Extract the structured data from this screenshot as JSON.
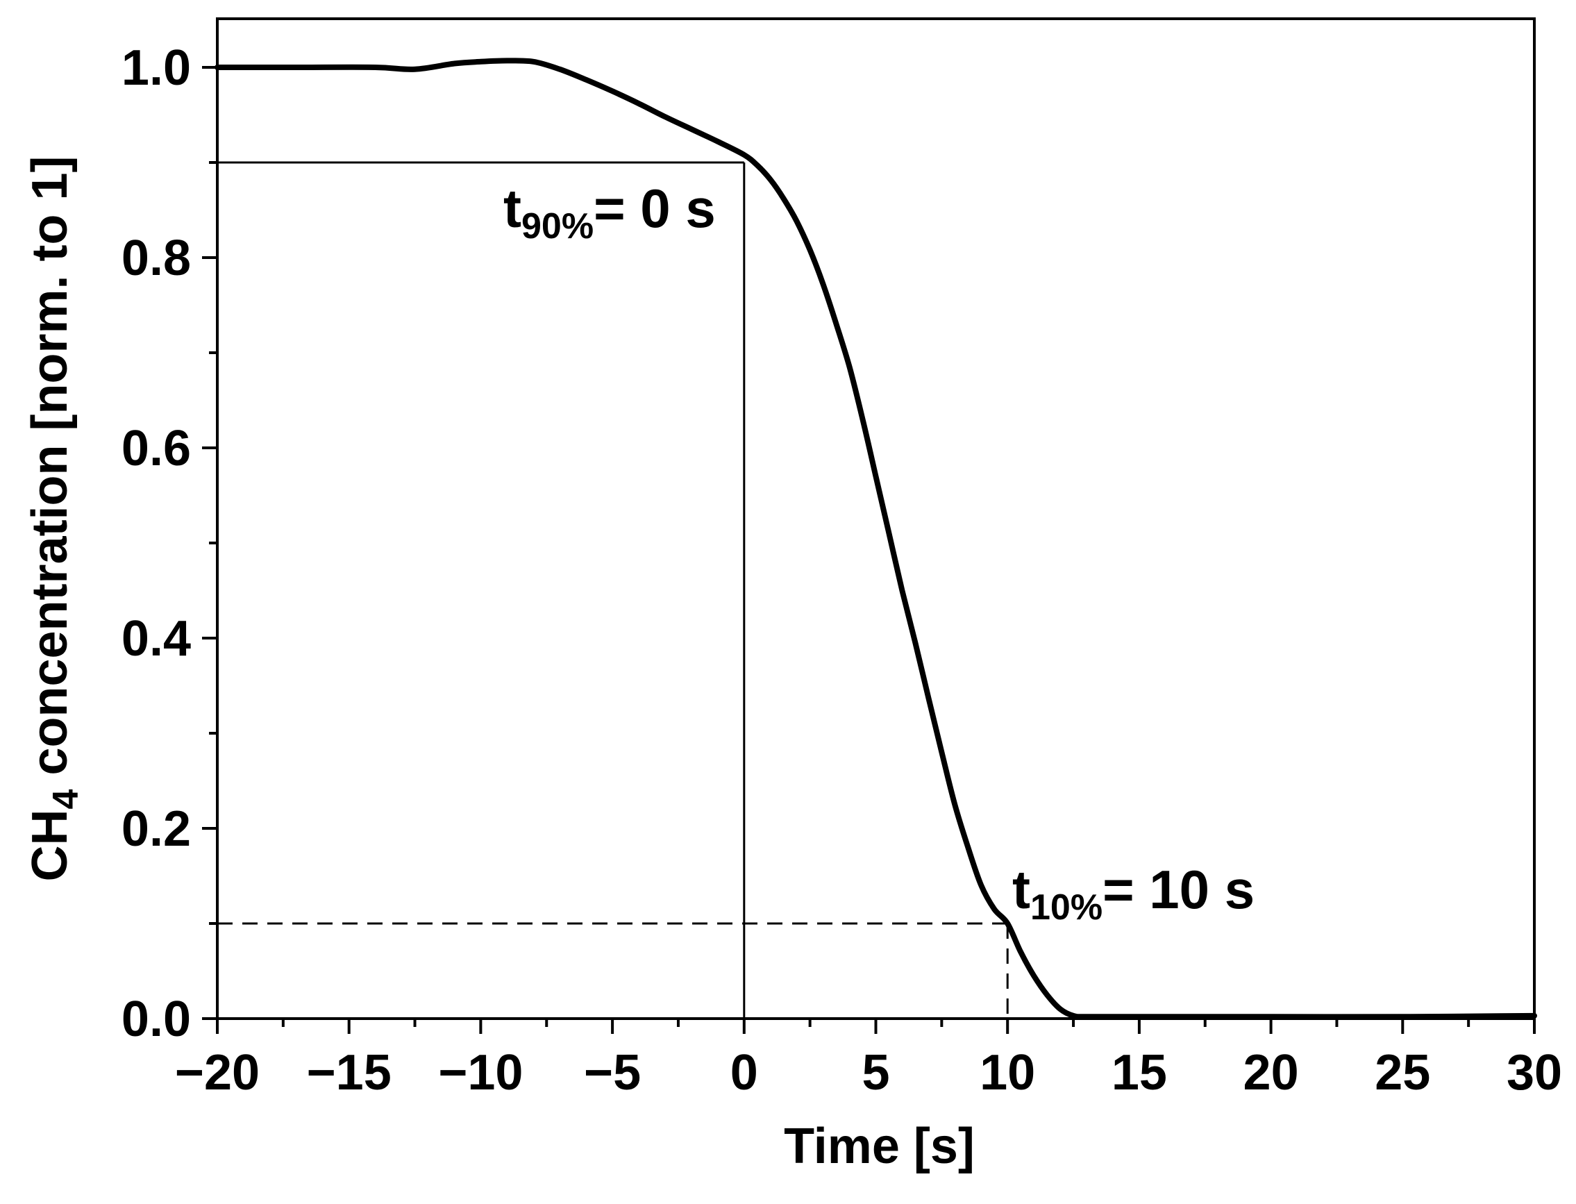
{
  "chart_data": {
    "type": "line",
    "title": "",
    "xlabel": "Time [s]",
    "ylabel_main": "CH",
    "ylabel_sub": "4",
    "ylabel_rest": " concentration [norm. to 1]",
    "xlim": [
      -20,
      30
    ],
    "ylim": [
      0,
      1.05
    ],
    "x_ticks": [
      -20,
      -15,
      -10,
      -5,
      0,
      5,
      10,
      15,
      20,
      25,
      30
    ],
    "x_tick_labels": [
      "−20",
      "−15",
      "−10",
      "−5",
      "0",
      "5",
      "10",
      "15",
      "20",
      "25",
      "30"
    ],
    "y_ticks": [
      0.0,
      0.2,
      0.4,
      0.6,
      0.8,
      1.0
    ],
    "y_tick_labels": [
      "0.0",
      "0.2",
      "0.4",
      "0.6",
      "0.8",
      "1.0"
    ],
    "grid": false,
    "series": [
      {
        "name": "CH4 concentration",
        "color": "#000000",
        "x": [
          -20,
          -17,
          -14,
          -12.5,
          -11,
          -10,
          -9,
          -8,
          -7,
          -6,
          -5,
          -4,
          -3,
          -2,
          -1,
          0,
          0.5,
          1,
          1.5,
          2,
          2.5,
          3,
          3.5,
          4,
          4.5,
          5,
          5.5,
          6,
          6.5,
          7,
          7.5,
          8,
          8.5,
          9,
          9.5,
          10,
          10.5,
          11,
          11.5,
          12,
          12.5,
          13,
          15,
          20,
          25,
          30
        ],
        "y": [
          1.0,
          1.0,
          1.0,
          0.998,
          1.004,
          1.006,
          1.007,
          1.006,
          0.998,
          0.987,
          0.975,
          0.962,
          0.948,
          0.935,
          0.922,
          0.908,
          0.897,
          0.882,
          0.862,
          0.838,
          0.808,
          0.772,
          0.73,
          0.685,
          0.63,
          0.57,
          0.51,
          0.45,
          0.395,
          0.337,
          0.28,
          0.225,
          0.18,
          0.14,
          0.115,
          0.1,
          0.07,
          0.045,
          0.025,
          0.01,
          0.003,
          0.002,
          0.002,
          0.002,
          0.002,
          0.003
        ]
      }
    ],
    "reference_lines": {
      "t90_level": 0.9,
      "t90_time": 0,
      "t10_level": 0.1,
      "t10_time": 10
    },
    "annotations": [
      {
        "main": "t",
        "sub": "90%",
        "rest": "= 0 s"
      },
      {
        "main": "t",
        "sub": "10%",
        "rest": "= 10 s"
      }
    ]
  }
}
